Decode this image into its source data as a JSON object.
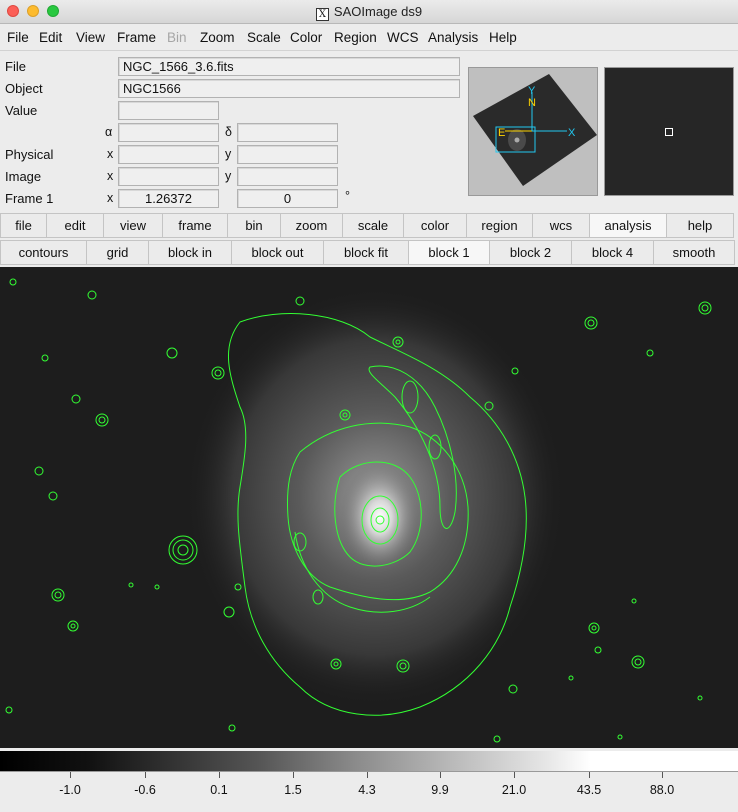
{
  "window": {
    "title": "SAOImage ds9"
  },
  "menu": [
    "File",
    "Edit",
    "View",
    "Frame",
    "Bin",
    "Zoom",
    "Scale",
    "Color",
    "Region",
    "WCS",
    "Analysis",
    "Help"
  ],
  "menu_disabled": [
    "Bin"
  ],
  "info": {
    "file_label": "File",
    "file_value": "NGC_1566_3.6.fits",
    "object_label": "Object",
    "object_value": "NGC1566",
    "value_label": "Value",
    "value_value": "",
    "alpha_symbol": "α",
    "delta_symbol": "δ",
    "physical_label": "Physical",
    "image_label": "Image",
    "x_label": "x",
    "y_label": "y",
    "frame_label": "Frame 1",
    "zoom_value": "1.26372",
    "angle_value": "0",
    "degree_symbol": "°"
  },
  "panner": {
    "n_label": "N",
    "e_label": "E",
    "x_label": "X",
    "y_label": "Y"
  },
  "buttonbar_main": [
    "file",
    "edit",
    "view",
    "frame",
    "bin",
    "zoom",
    "scale",
    "color",
    "region",
    "wcs",
    "analysis",
    "help"
  ],
  "buttonbar_main_selected": "analysis",
  "buttonbar_sub": [
    "contours",
    "grid",
    "block in",
    "block out",
    "block fit",
    "block 1",
    "block 2",
    "block 4",
    "smooth"
  ],
  "buttonbar_sub_selected": "block 1",
  "colorbar": {
    "ticks": [
      "-1.0",
      "-0.6",
      "0.1",
      "1.5",
      "4.3",
      "9.9",
      "21.0",
      "43.5",
      "88.0"
    ]
  },
  "colors": {
    "contour": "#33ff33",
    "panner_arrow_wcs": "#ffd400",
    "panner_arrow_image": "#22c8f0",
    "image_background": "#1d1d1d"
  }
}
